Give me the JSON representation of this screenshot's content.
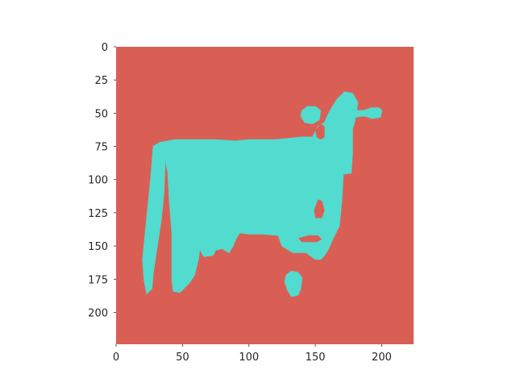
{
  "chart_data": {
    "type": "heatmap",
    "title": "",
    "xlabel": "",
    "ylabel": "",
    "xlim": [
      0,
      224
    ],
    "ylim": [
      224,
      0
    ],
    "grid": false,
    "legend": "none",
    "x_ticks": [
      {
        "value": 0,
        "label": "0"
      },
      {
        "value": 50,
        "label": "50"
      },
      {
        "value": 100,
        "label": "100"
      },
      {
        "value": 150,
        "label": "150"
      },
      {
        "value": 200,
        "label": "200"
      }
    ],
    "y_ticks": [
      {
        "value": 0,
        "label": "0"
      },
      {
        "value": 25,
        "label": "25"
      },
      {
        "value": 50,
        "label": "50"
      },
      {
        "value": 75,
        "label": "75"
      },
      {
        "value": 100,
        "label": "100"
      },
      {
        "value": 125,
        "label": "125"
      },
      {
        "value": 150,
        "label": "150"
      },
      {
        "value": 175,
        "label": "175"
      },
      {
        "value": 200,
        "label": "200"
      }
    ],
    "colors": {
      "background_class": "#d95f55",
      "object_class": "#52dbcf"
    },
    "mask_regions": [
      {
        "name": "cow-body",
        "outline": [
          [
            28,
            75
          ],
          [
            33,
            72
          ],
          [
            45,
            70
          ],
          [
            60,
            70
          ],
          [
            75,
            70
          ],
          [
            90,
            71
          ],
          [
            100,
            70
          ],
          [
            120,
            70
          ],
          [
            140,
            68
          ],
          [
            148,
            68
          ],
          [
            152,
            60
          ],
          [
            157,
            57
          ],
          [
            160,
            50
          ],
          [
            163,
            45
          ],
          [
            166,
            40
          ],
          [
            172,
            34
          ],
          [
            178,
            35
          ],
          [
            182,
            42
          ],
          [
            180,
            55
          ],
          [
            178,
            62
          ],
          [
            178,
            80
          ],
          [
            177,
            95
          ],
          [
            171,
            96
          ],
          [
            170,
            115
          ],
          [
            168,
            135
          ],
          [
            163,
            145
          ],
          [
            160,
            152
          ],
          [
            157,
            157
          ],
          [
            154,
            160
          ],
          [
            150,
            160
          ],
          [
            143,
            155
          ],
          [
            133,
            155
          ],
          [
            125,
            150
          ],
          [
            122,
            142
          ],
          [
            110,
            141
          ],
          [
            100,
            141
          ],
          [
            93,
            140
          ],
          [
            90,
            145
          ],
          [
            88,
            150
          ],
          [
            85,
            155
          ],
          [
            80,
            152
          ],
          [
            75,
            153
          ],
          [
            73,
            157
          ],
          [
            66,
            158
          ],
          [
            63,
            152
          ],
          [
            62,
            160
          ],
          [
            59,
            172
          ],
          [
            55,
            178
          ],
          [
            48,
            185
          ],
          [
            43,
            184
          ],
          [
            42,
            175
          ],
          [
            42,
            140
          ],
          [
            40,
            115
          ],
          [
            39,
            95
          ],
          [
            37,
            84
          ],
          [
            36,
            110
          ],
          [
            34,
            130
          ],
          [
            31,
            150
          ],
          [
            28,
            170
          ],
          [
            27,
            182
          ],
          [
            23,
            186
          ],
          [
            21,
            175
          ],
          [
            20,
            160
          ],
          [
            22,
            140
          ],
          [
            24,
            120
          ],
          [
            26,
            100
          ]
        ]
      },
      {
        "name": "cow-ear-right",
        "outline": [
          [
            178,
            48
          ],
          [
            187,
            48
          ],
          [
            192,
            46
          ],
          [
            198,
            46
          ],
          [
            200,
            48
          ],
          [
            199,
            53
          ],
          [
            193,
            54
          ],
          [
            187,
            52
          ],
          [
            180,
            53
          ]
        ]
      },
      {
        "name": "cow-ear-left",
        "outline": [
          [
            140,
            48
          ],
          [
            144,
            45
          ],
          [
            150,
            45
          ],
          [
            154,
            48
          ],
          [
            153,
            55
          ],
          [
            148,
            58
          ],
          [
            142,
            57
          ],
          [
            139,
            52
          ]
        ]
      },
      {
        "name": "cow-lower-blob",
        "outline": [
          [
            128,
            172
          ],
          [
            132,
            169
          ],
          [
            137,
            170
          ],
          [
            140,
            174
          ],
          [
            139,
            182
          ],
          [
            137,
            187
          ],
          [
            132,
            188
          ],
          [
            129,
            183
          ],
          [
            127,
            177
          ]
        ]
      }
    ],
    "mask_holes": [
      {
        "name": "hole-muzzle",
        "outline": [
          [
            150,
            63
          ],
          [
            154,
            58
          ],
          [
            157,
            60
          ],
          [
            157,
            68
          ],
          [
            154,
            70
          ],
          [
            151,
            68
          ]
        ]
      },
      {
        "name": "hole-belly",
        "outline": [
          [
            149,
            123
          ],
          [
            152,
            115
          ],
          [
            155,
            116
          ],
          [
            157,
            123
          ],
          [
            155,
            129
          ],
          [
            150,
            129
          ]
        ]
      },
      {
        "name": "hole-lower-gap",
        "outline": [
          [
            137,
            144
          ],
          [
            145,
            142
          ],
          [
            152,
            142
          ],
          [
            155,
            145
          ],
          [
            151,
            147
          ],
          [
            140,
            147
          ]
        ]
      }
    ]
  }
}
